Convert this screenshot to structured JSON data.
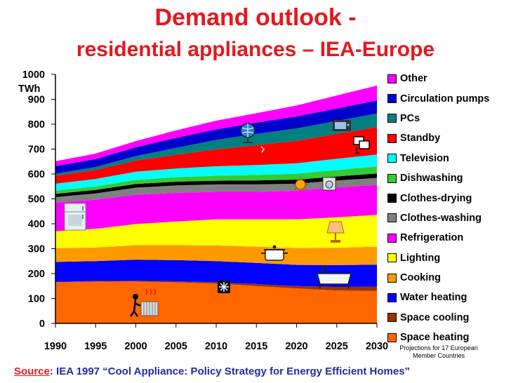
{
  "title_line1": "Demand outlook -",
  "title_line2": "residential appliances – IEA-Europe",
  "source_label": "Source",
  "source_text": ": IEA 1997 “Cool Appliance: Policy Strategy for Energy Efficient Homes”",
  "note": "Projections for  17 European Member Countries",
  "chart_data": {
    "type": "area",
    "stacked": true,
    "ylabel": "TWh",
    "ylim": [
      0,
      1000
    ],
    "xlim": [
      1990,
      2030
    ],
    "yticks": [
      0,
      100,
      200,
      300,
      400,
      500,
      600,
      700,
      800,
      900,
      1000
    ],
    "xticks": [
      1990,
      1995,
      2000,
      2005,
      2010,
      2015,
      2020,
      2025,
      2030
    ],
    "grid": false,
    "legend_position": "right",
    "x": [
      1990,
      1995,
      2000,
      2005,
      2010,
      2015,
      2020,
      2025,
      2030
    ],
    "series": [
      {
        "name": "Space heating",
        "color": "#ff6600",
        "values": [
          165,
          168,
          168,
          165,
          160,
          150,
          140,
          132,
          130
        ]
      },
      {
        "name": "Space cooling",
        "color": "#993300",
        "values": [
          2,
          2,
          3,
          4,
          5,
          8,
          10,
          14,
          18
        ]
      },
      {
        "name": "Water heating",
        "color": "#0000ff",
        "values": [
          80,
          80,
          85,
          85,
          85,
          85,
          85,
          88,
          88
        ]
      },
      {
        "name": "Cooking",
        "color": "#ff9900",
        "values": [
          55,
          55,
          58,
          60,
          63,
          65,
          68,
          70,
          72
        ]
      },
      {
        "name": "Lighting",
        "color": "#ffff00",
        "values": [
          68,
          75,
          85,
          95,
          105,
          110,
          115,
          122,
          128
        ]
      },
      {
        "name": "Refrigeration",
        "color": "#ff00ff",
        "values": [
          115,
          117,
          118,
          115,
          110,
          110,
          115,
          120,
          120
        ]
      },
      {
        "name": "Clothes-washing",
        "color": "#808080",
        "values": [
          22,
          25,
          28,
          30,
          30,
          30,
          28,
          28,
          28
        ]
      },
      {
        "name": "Clothes-drying",
        "color": "#000000",
        "values": [
          13,
          14,
          15,
          15,
          15,
          16,
          16,
          16,
          18
        ]
      },
      {
        "name": "Dishwashing",
        "color": "#33cc33",
        "values": [
          13,
          14,
          16,
          18,
          20,
          22,
          24,
          26,
          28
        ]
      },
      {
        "name": "Television",
        "color": "#00ffff",
        "values": [
          28,
          30,
          33,
          35,
          38,
          40,
          42,
          45,
          48
        ]
      },
      {
        "name": "Standby",
        "color": "#ff0000",
        "values": [
          32,
          36,
          45,
          55,
          68,
          80,
          90,
          100,
          110
        ]
      },
      {
        "name": "PCs",
        "color": "#008080",
        "values": [
          8,
          12,
          18,
          28,
          38,
          45,
          50,
          52,
          55
        ]
      },
      {
        "name": "Circulation pumps",
        "color": "#0000cc",
        "values": [
          30,
          32,
          35,
          40,
          42,
          45,
          48,
          50,
          52
        ]
      },
      {
        "name": "Other",
        "color": "#ff00ff",
        "values": [
          20,
          22,
          25,
          30,
          35,
          38,
          44,
          52,
          60
        ]
      }
    ]
  }
}
